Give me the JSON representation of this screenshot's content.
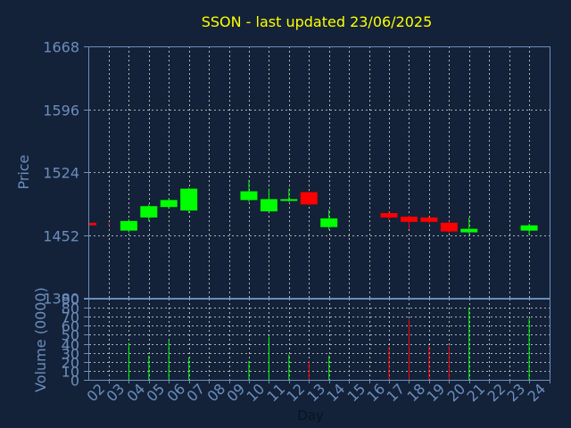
{
  "chart_data": [
    {
      "type": "candlestick",
      "title": "SSON - last updated 23/06/2025",
      "ylabel": "Price",
      "ylim": [
        1380,
        1668
      ],
      "yticks": [
        "1668",
        "1596",
        "1524",
        "1452",
        "1380"
      ],
      "grid": true,
      "candles": [
        {
          "day": "02",
          "open": 1466,
          "close": 1463,
          "high": 1466,
          "low": 1463
        },
        {
          "day": "03",
          "open": 1457,
          "close": 1468,
          "high": 1470,
          "low": 1455
        },
        {
          "day": "04",
          "open": 1472,
          "close": 1485,
          "high": 1487,
          "low": 1468
        },
        {
          "day": "05",
          "open": 1484,
          "close": 1492,
          "high": 1494,
          "low": 1482
        },
        {
          "day": "06",
          "open": 1480,
          "close": 1505,
          "high": 1506,
          "low": 1477
        },
        {
          "day": "09",
          "open": 1492,
          "close": 1502,
          "high": 1515,
          "low": 1490
        },
        {
          "day": "10",
          "open": 1479,
          "close": 1493,
          "high": 1505,
          "low": 1478
        },
        {
          "day": "11",
          "open": 1491,
          "close": 1493,
          "high": 1505,
          "low": 1490
        },
        {
          "day": "12",
          "open": 1501,
          "close": 1487,
          "high": 1502,
          "low": 1486
        },
        {
          "day": "13",
          "open": 1461,
          "close": 1471,
          "high": 1481,
          "low": 1458
        },
        {
          "day": "16",
          "open": 1477,
          "close": 1472,
          "high": 1479,
          "low": 1469
        },
        {
          "day": "17",
          "open": 1473,
          "close": 1467,
          "high": 1474,
          "low": 1459
        },
        {
          "day": "18",
          "open": 1472,
          "close": 1467,
          "high": 1474,
          "low": 1465
        },
        {
          "day": "19",
          "open": 1466,
          "close": 1456,
          "high": 1468,
          "low": 1454
        },
        {
          "day": "20",
          "open": 1455,
          "close": 1459,
          "high": 1472,
          "low": 1453
        },
        {
          "day": "23",
          "open": 1457,
          "close": 1463,
          "high": 1465,
          "low": 1452
        }
      ]
    },
    {
      "type": "bar",
      "ylabel": "Volume (0000)",
      "xlabel": "Day",
      "ylim": [
        0,
        90
      ],
      "yticks": [
        "90",
        "80",
        "70",
        "60",
        "50",
        "40",
        "30",
        "20",
        "10",
        "0"
      ],
      "categories": [
        "02",
        "03",
        "04",
        "05",
        "06",
        "07",
        "08",
        "09",
        "10",
        "11",
        "12",
        "13",
        "14",
        "15",
        "16",
        "17",
        "18",
        "19",
        "20",
        "21",
        "22",
        "23",
        "24"
      ],
      "values": [
        0,
        41,
        27,
        44,
        25,
        0,
        0,
        21,
        48,
        28,
        21,
        27,
        0,
        0,
        37,
        67,
        38,
        38,
        80,
        0,
        0,
        68,
        0
      ],
      "direction": [
        "",
        "up",
        "up",
        "up",
        "up",
        "",
        "",
        "up",
        "up",
        "up",
        "down",
        "up",
        "",
        "",
        "down",
        "down",
        "down",
        "down",
        "up",
        "",
        "",
        "up",
        ""
      ]
    }
  ],
  "colors": {
    "background": "#132238",
    "title": "#FFFF00",
    "axis_text": "#6C8DBE",
    "grid": "#E0E0E0",
    "up": "#00FF00",
    "down": "#FF0000"
  }
}
